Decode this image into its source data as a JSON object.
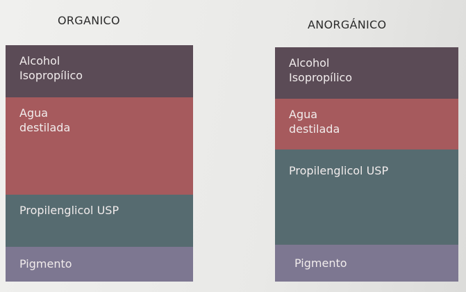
{
  "columns": [
    {
      "title": "ORGANICO",
      "bands": [
        {
          "label": "Alcohol\nIsopropílico",
          "color": "#5b4b56"
        },
        {
          "label": "Agua\ndestilada",
          "color": "#a65a5d"
        },
        {
          "label": "Propilenglicol USP",
          "color": "#566b70"
        },
        {
          "label": "Pigmento",
          "color": "#7d7791"
        }
      ]
    },
    {
      "title": "ANORGÁNICO",
      "bands": [
        {
          "label": "Alcohol\nIsopropílico",
          "color": "#5b4b56"
        },
        {
          "label": "Agua\ndestilada",
          "color": "#a65a5d"
        },
        {
          "label": "Propilenglicol USP",
          "color": "#566b70"
        },
        {
          "label": "Pigmento",
          "color": "#7d7791"
        }
      ]
    }
  ]
}
